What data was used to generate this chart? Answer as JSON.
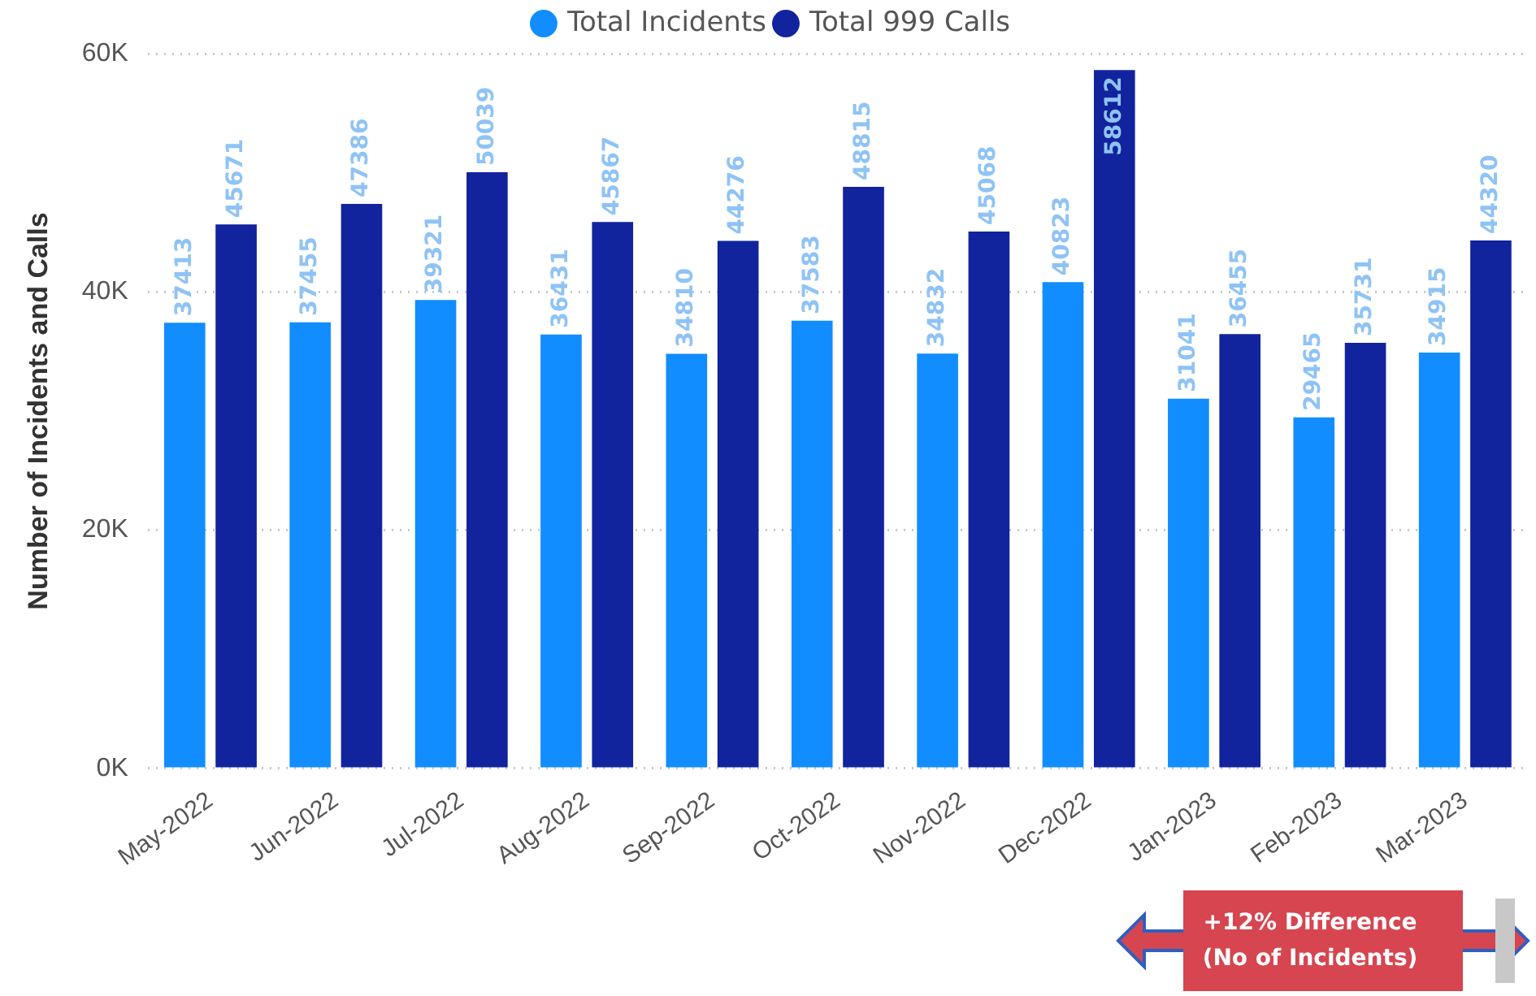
{
  "chart_data": {
    "type": "bar",
    "ylabel": "Number of Incidents and Calls",
    "categories": [
      "May-2022",
      "Jun-2022",
      "Jul-2022",
      "Aug-2022",
      "Sep-2022",
      "Oct-2022",
      "Nov-2022",
      "Dec-2022",
      "Jan-2023",
      "Feb-2023",
      "Mar-2023"
    ],
    "series": [
      {
        "name": "Total Incidents",
        "color": "#118dff",
        "values": [
          37413,
          37455,
          39321,
          36431,
          34810,
          37583,
          34832,
          40823,
          31041,
          29465,
          34915
        ]
      },
      {
        "name": "Total 999 Calls",
        "color": "#12239e",
        "values": [
          45671,
          47386,
          50039,
          45867,
          44276,
          48815,
          45068,
          58612,
          36455,
          35731,
          44320
        ]
      }
    ],
    "ylim": [
      0,
      60000
    ],
    "yticks": [
      {
        "value": 0,
        "label": "0K"
      },
      {
        "value": 20000,
        "label": "20K"
      },
      {
        "value": 40000,
        "label": "40K"
      },
      {
        "value": 60000,
        "label": "60K"
      }
    ],
    "grid": "y",
    "legend": "top",
    "data_labels": true,
    "annotations": [
      "+12% Difference\n(No of Incidents)"
    ]
  }
}
